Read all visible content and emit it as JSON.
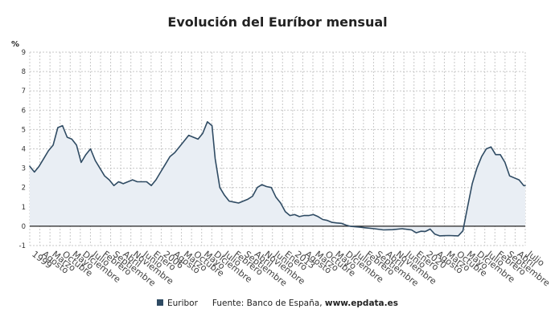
{
  "chart_data": {
    "type": "area",
    "title": "Evolución del Euríbor mensual",
    "ylabel": "%",
    "xlabel": "",
    "ylim": [
      -1,
      9
    ],
    "yticks": [
      -1,
      0,
      1,
      2,
      3,
      4,
      5,
      6,
      7,
      8,
      9
    ],
    "grid": true,
    "legend_position": "bottom",
    "colors": {
      "line": "#2f4b63",
      "fill": "#e9eef4",
      "zero_line": "#222222"
    },
    "x_tick_labels": [
      "1999",
      "Agosto",
      "Marzo",
      "Octubre",
      "Mayo",
      "Diciembre",
      "Julio",
      "Febrero",
      "Septiembre",
      "Abril",
      "Noviembre",
      "Junio",
      "Enero",
      "2006",
      "Agosto",
      "Marzo",
      "Octubre",
      "Mayo",
      "Diciembre",
      "Julio",
      "Febrero",
      "Septiembre",
      "Abril",
      "Noviembre",
      "Junio",
      "Enero",
      "2013",
      "Agosto",
      "Marzo",
      "Octubre",
      "Mayo",
      "Diciembre",
      "Julio",
      "Febrero",
      "Septiembre",
      "Abril",
      "Noviembre",
      "Junio",
      "Enero",
      "2020",
      "Agosto",
      "Marzo",
      "Octubre",
      "Mayo",
      "Diciembre",
      "Julio",
      "Febrero",
      "Septiembre",
      "Abril",
      "Julio"
    ],
    "series": [
      {
        "name": "Euribor",
        "x": [
          "1999-01",
          "1999-04",
          "1999-07",
          "1999-10",
          "2000-01",
          "2000-04",
          "2000-07",
          "2000-10",
          "2001-01",
          "2001-04",
          "2001-07",
          "2001-10",
          "2002-01",
          "2002-04",
          "2002-07",
          "2002-10",
          "2003-01",
          "2003-04",
          "2003-07",
          "2003-10",
          "2004-01",
          "2004-04",
          "2004-07",
          "2004-10",
          "2005-01",
          "2005-04",
          "2005-07",
          "2005-10",
          "2006-01",
          "2006-04",
          "2006-07",
          "2006-10",
          "2007-01",
          "2007-04",
          "2007-07",
          "2007-10",
          "2008-01",
          "2008-04",
          "2008-07",
          "2008-10",
          "2008-12",
          "2009-03",
          "2009-06",
          "2009-09",
          "2009-12",
          "2010-03",
          "2010-06",
          "2010-09",
          "2010-12",
          "2011-03",
          "2011-06",
          "2011-09",
          "2011-12",
          "2012-03",
          "2012-06",
          "2012-09",
          "2012-12",
          "2013-03",
          "2013-06",
          "2013-09",
          "2013-12",
          "2014-03",
          "2014-06",
          "2014-09",
          "2014-12",
          "2015-03",
          "2015-06",
          "2015-09",
          "2015-12",
          "2016-03",
          "2016-06",
          "2016-09",
          "2016-12",
          "2017-06",
          "2017-12",
          "2018-06",
          "2018-12",
          "2019-06",
          "2019-09",
          "2019-12",
          "2020-03",
          "2020-06",
          "2020-09",
          "2020-12",
          "2021-03",
          "2021-06",
          "2021-12",
          "2022-03",
          "2022-06",
          "2022-09",
          "2022-12",
          "2023-03",
          "2023-06",
          "2023-09",
          "2023-12",
          "2024-03",
          "2024-06",
          "2024-09",
          "2024-12",
          "2025-03",
          "2025-06",
          "2025-07"
        ],
        "values": [
          3.1,
          2.8,
          3.1,
          3.5,
          3.9,
          4.2,
          5.1,
          5.2,
          4.6,
          4.5,
          4.2,
          3.3,
          3.7,
          4.0,
          3.4,
          3.0,
          2.6,
          2.4,
          2.1,
          2.3,
          2.2,
          2.3,
          2.4,
          2.3,
          2.3,
          2.3,
          2.1,
          2.4,
          2.8,
          3.2,
          3.6,
          3.8,
          4.1,
          4.4,
          4.7,
          4.6,
          4.5,
          4.8,
          5.4,
          5.2,
          3.5,
          2.0,
          1.6,
          1.3,
          1.25,
          1.2,
          1.3,
          1.4,
          1.55,
          2.0,
          2.15,
          2.05,
          2.0,
          1.5,
          1.2,
          0.75,
          0.55,
          0.6,
          0.5,
          0.55,
          0.55,
          0.6,
          0.5,
          0.35,
          0.3,
          0.2,
          0.17,
          0.15,
          0.06,
          -0.01,
          -0.03,
          -0.05,
          -0.08,
          -0.13,
          -0.19,
          -0.18,
          -0.13,
          -0.19,
          -0.34,
          -0.26,
          -0.27,
          -0.15,
          -0.41,
          -0.5,
          -0.49,
          -0.48,
          -0.5,
          -0.24,
          1.0,
          2.2,
          3.0,
          3.6,
          4.0,
          4.1,
          3.7,
          3.7,
          3.3,
          2.6,
          2.5,
          2.4,
          2.1,
          2.1
        ]
      }
    ]
  },
  "legend": {
    "series_label": "Euribor",
    "source_label": "Fuente: Banco de España,",
    "source_site": "www.epdata.es"
  }
}
